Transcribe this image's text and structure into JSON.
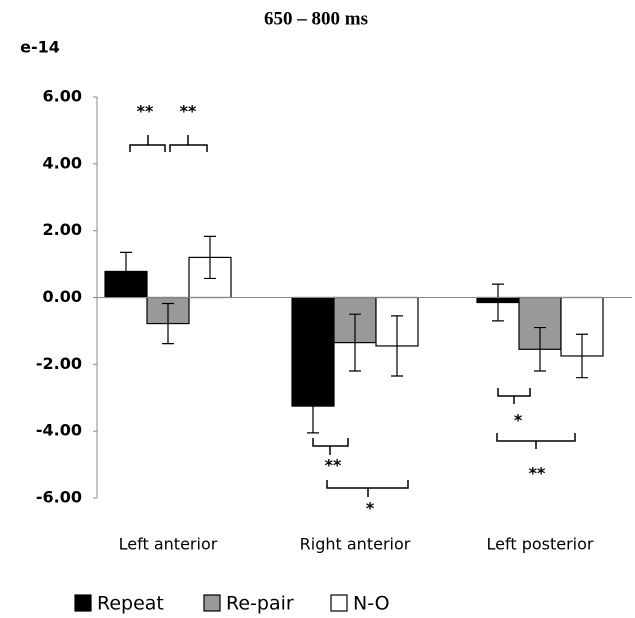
{
  "chart_data": {
    "type": "bar",
    "title": "650 – 800 ms",
    "y_label": "e-14",
    "categories": [
      "Left anterior",
      "Right anterior",
      "Left posterior"
    ],
    "series": [
      {
        "name": "Repeat",
        "color": "#000000",
        "values": [
          0.78,
          -3.25,
          -0.15
        ],
        "errors": [
          0.57,
          0.8,
          0.55
        ]
      },
      {
        "name": "Re-pair",
        "color": "#999999",
        "values": [
          -0.78,
          -1.35,
          -1.55
        ],
        "errors": [
          0.6,
          0.85,
          0.65
        ]
      },
      {
        "name": "N-O",
        "color": "#ffffff",
        "values": [
          1.2,
          -1.45,
          -1.75
        ],
        "errors": [
          0.63,
          0.9,
          0.65
        ]
      }
    ],
    "ylim": [
      -6,
      6
    ],
    "yticks": [
      {
        "value": -6,
        "label": "-6.00"
      },
      {
        "value": -4,
        "label": "-4.00"
      },
      {
        "value": -2,
        "label": "-2.00"
      },
      {
        "value": 0,
        "label": "0.00"
      },
      {
        "value": 2,
        "label": "2.00"
      },
      {
        "value": 4,
        "label": "4.00"
      },
      {
        "value": 6,
        "label": "6.00"
      }
    ],
    "grid": false,
    "annotations": [
      "**",
      "**",
      "**",
      "*",
      "*",
      "**"
    ]
  }
}
